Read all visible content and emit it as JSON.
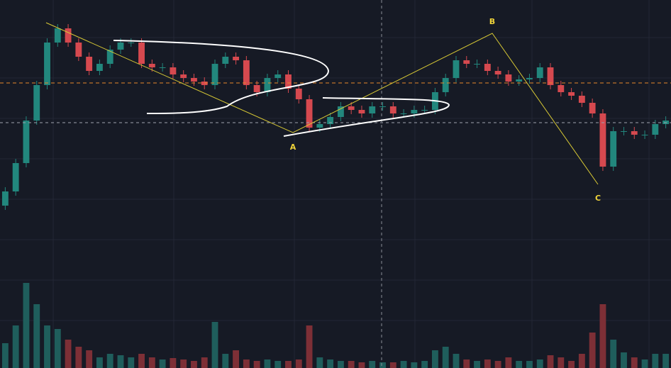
{
  "chart_data": {
    "type": "candlestick",
    "ylim": [
      200,
      500
    ],
    "volume_lim": [
      0,
      150
    ],
    "up_color": "#22877d",
    "down_color": "#d6494f",
    "volume_up_color": "#1f5e5c",
    "volume_down_color": "#7d2f36",
    "annotations": [
      "A",
      "B",
      "C"
    ],
    "open": [
      229,
      249,
      289,
      349,
      399,
      459,
      479,
      459,
      439,
      419,
      429,
      449,
      459,
      459,
      429,
      424,
      424,
      414,
      409,
      404,
      399,
      429,
      439,
      434,
      399,
      389,
      409,
      414,
      394,
      379,
      339,
      344,
      354,
      369,
      364,
      359,
      369,
      369,
      359,
      359,
      364,
      364,
      389,
      409,
      434,
      429,
      429,
      419,
      414,
      404,
      407,
      409,
      424,
      399,
      389,
      384,
      374,
      359,
      284,
      334,
      334,
      329,
      329,
      344
    ],
    "high": [
      255,
      295,
      355,
      405,
      465,
      485,
      485,
      465,
      445,
      435,
      455,
      465,
      465,
      465,
      435,
      430,
      430,
      420,
      415,
      410,
      435,
      445,
      445,
      440,
      405,
      415,
      420,
      420,
      400,
      385,
      350,
      360,
      375,
      375,
      370,
      375,
      375,
      375,
      365,
      370,
      370,
      395,
      415,
      440,
      440,
      435,
      435,
      425,
      420,
      413,
      415,
      430,
      430,
      405,
      395,
      390,
      380,
      365,
      340,
      340,
      340,
      335,
      350,
      355
    ],
    "low": [
      223,
      243,
      283,
      343,
      393,
      453,
      453,
      433,
      413,
      413,
      423,
      443,
      453,
      423,
      418,
      418,
      408,
      403,
      398,
      393,
      393,
      423,
      428,
      393,
      383,
      383,
      403,
      388,
      373,
      333,
      333,
      338,
      348,
      358,
      353,
      353,
      363,
      353,
      353,
      353,
      358,
      358,
      383,
      403,
      423,
      423,
      413,
      408,
      398,
      398,
      401,
      403,
      393,
      383,
      378,
      368,
      353,
      278,
      278,
      328,
      323,
      323,
      323,
      338
    ],
    "close": [
      249,
      289,
      349,
      399,
      459,
      479,
      459,
      439,
      419,
      429,
      449,
      459,
      459,
      429,
      424,
      424,
      414,
      409,
      404,
      399,
      429,
      439,
      434,
      399,
      389,
      409,
      414,
      394,
      379,
      339,
      344,
      354,
      369,
      364,
      359,
      369,
      369,
      359,
      359,
      364,
      364,
      389,
      409,
      434,
      429,
      429,
      419,
      414,
      404,
      407,
      409,
      424,
      399,
      389,
      384,
      374,
      359,
      284,
      334,
      334,
      329,
      329,
      344,
      349
    ],
    "volume": [
      35,
      60,
      120,
      90,
      60,
      55,
      40,
      30,
      25,
      15,
      20,
      18,
      15,
      20,
      15,
      12,
      14,
      12,
      10,
      15,
      65,
      20,
      25,
      12,
      10,
      12,
      10,
      10,
      12,
      60,
      15,
      12,
      10,
      10,
      8,
      10,
      8,
      8,
      10,
      8,
      10,
      25,
      30,
      20,
      12,
      10,
      12,
      10,
      15,
      10,
      10,
      12,
      18,
      15,
      10,
      20,
      50,
      90,
      40,
      22,
      15,
      12,
      20,
      20
    ]
  }
}
